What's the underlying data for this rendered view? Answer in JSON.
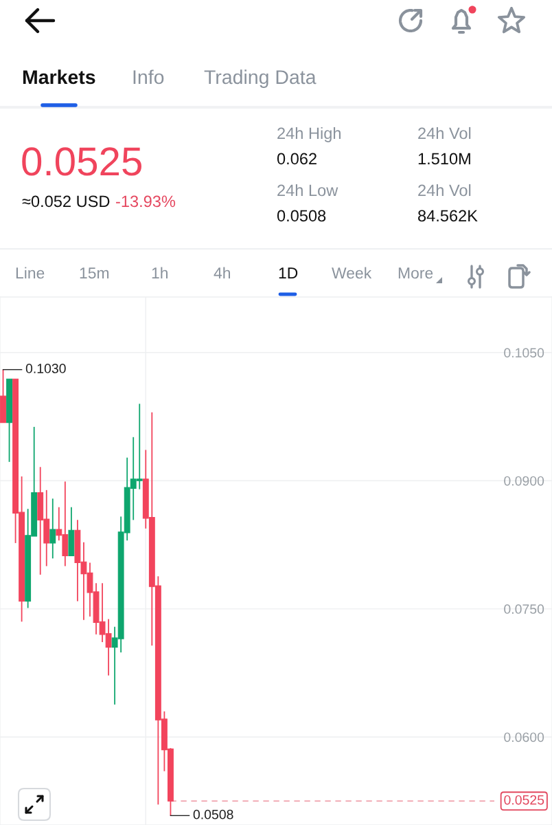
{
  "chart_data": [
    {
      "type": "other",
      "annotations": [
        "Markets",
        "Info",
        "Trading Data",
        "0.0525",
        "≈0.052 USD",
        "-13.93%",
        "24h High",
        "0.062",
        "24h Low",
        "0.0508",
        "24h Vol",
        "1.510M",
        "24h Vol",
        "84.562K",
        "Line",
        "15m",
        "1h",
        "4h",
        "1D",
        "Week",
        "More"
      ]
    },
    {
      "type": "candlestick",
      "categories": [
        null,
        null,
        null,
        null,
        null,
        null,
        null,
        null,
        null,
        null,
        null,
        null,
        null,
        null,
        null,
        null,
        null,
        null,
        null,
        null,
        null,
        null,
        null,
        null,
        null,
        null,
        null,
        null,
        null,
        null,
        null,
        null,
        null,
        null,
        null,
        null,
        null,
        null,
        null,
        null,
        null,
        null,
        null,
        null,
        null,
        null,
        null,
        null,
        null,
        null,
        null,
        null,
        null,
        null,
        null,
        null,
        null,
        null,
        null,
        null,
        null,
        null,
        null,
        null,
        null,
        null,
        null,
        null,
        null,
        null,
        null,
        null,
        null,
        null,
        null,
        null,
        null,
        null,
        null,
        null,
        null,
        null,
        null,
        null,
        null,
        null,
        null,
        null,
        null
      ],
      "ohlc": [
        [
          0.0999,
          0.103,
          0.0968,
          0.0968
        ],
        [
          0.0968,
          0.1019,
          0.0922,
          0.1019
        ],
        [
          0.1019,
          0.1019,
          0.0827,
          0.0862
        ],
        [
          0.0863,
          0.0905,
          0.0735,
          0.0759
        ],
        [
          0.0759,
          0.0867,
          0.0751,
          0.0836
        ],
        [
          0.0835,
          0.0963,
          0.0835,
          0.0886
        ],
        [
          0.0886,
          0.0916,
          0.079,
          0.0854
        ],
        [
          0.0855,
          0.0889,
          0.08,
          0.0827
        ],
        [
          0.0827,
          0.0879,
          0.0809,
          0.0843
        ],
        [
          0.0843,
          0.0869,
          0.083,
          0.0836
        ],
        [
          0.0837,
          0.0899,
          0.08,
          0.0812
        ],
        [
          0.0812,
          0.0869,
          0.0812,
          0.0842
        ],
        [
          0.0842,
          0.0854,
          0.0759,
          0.0804
        ],
        [
          0.0805,
          0.0828,
          0.0737,
          0.0791
        ],
        [
          0.0792,
          0.0804,
          0.0741,
          0.0769
        ],
        [
          0.077,
          0.078,
          0.072,
          0.0734
        ],
        [
          0.0735,
          0.078,
          0.0711,
          0.072
        ],
        [
          0.0721,
          0.0738,
          0.0672,
          0.0705
        ],
        [
          0.0705,
          0.0729,
          0.0638,
          0.0716
        ],
        [
          0.0715,
          0.0858,
          0.0699,
          0.084
        ],
        [
          0.0839,
          0.0927,
          0.083,
          0.0892
        ],
        [
          0.0891,
          0.0951,
          0.0854,
          0.0902
        ],
        [
          0.09,
          0.099,
          0.089,
          0.0902
        ],
        [
          0.0902,
          0.0936,
          0.0844,
          0.0856
        ],
        [
          0.0857,
          0.098,
          0.0707,
          0.0776
        ],
        [
          0.0777,
          0.0788,
          0.0521,
          0.062
        ],
        [
          0.0621,
          0.063,
          0.056,
          0.0585
        ],
        [
          0.0586,
          0.0587,
          0.0508,
          0.0525
        ],
        null,
        null,
        null,
        null,
        null,
        null,
        null,
        null,
        null,
        null,
        null,
        null,
        null,
        null,
        null,
        null,
        null,
        null,
        null,
        null,
        null,
        null,
        null,
        null,
        null,
        null,
        null,
        null,
        null,
        null,
        null,
        null,
        null,
        null,
        null,
        null,
        null,
        null,
        null,
        null,
        null,
        null,
        null,
        null,
        null,
        null,
        null,
        null,
        null,
        null,
        null,
        null,
        null,
        null,
        null,
        null,
        null,
        null,
        null,
        null,
        null
      ],
      "ylim": [
        0.0497,
        0.1115
      ],
      "yticks": [
        {
          "value": 0.105,
          "label": "0.1050"
        },
        {
          "value": 0.09,
          "label": "0.0900"
        },
        {
          "value": 0.075,
          "label": "0.0750"
        },
        {
          "value": 0.06,
          "label": "0.0600"
        }
      ],
      "grid": "y",
      "tick_labels": "y",
      "annotations": [
        "0.1030",
        "0.0508"
      ],
      "ref_lines": [
        {
          "axis": "y",
          "value": 0.0525,
          "label": "0.0525",
          "color": "#e2475e",
          "line_style": "dashed"
        }
      ]
    }
  ]
}
